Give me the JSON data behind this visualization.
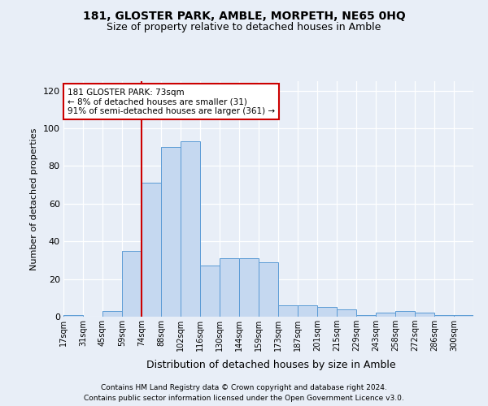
{
  "title1": "181, GLOSTER PARK, AMBLE, MORPETH, NE65 0HQ",
  "title2": "Size of property relative to detached houses in Amble",
  "xlabel": "Distribution of detached houses by size in Amble",
  "ylabel": "Number of detached properties",
  "bin_labels": [
    "17sqm",
    "31sqm",
    "45sqm",
    "59sqm",
    "74sqm",
    "88sqm",
    "102sqm",
    "116sqm",
    "130sqm",
    "144sqm",
    "159sqm",
    "173sqm",
    "187sqm",
    "201sqm",
    "215sqm",
    "229sqm",
    "243sqm",
    "258sqm",
    "272sqm",
    "286sqm",
    "300sqm"
  ],
  "bar_heights": [
    1,
    0,
    3,
    35,
    71,
    90,
    93,
    27,
    31,
    31,
    29,
    6,
    6,
    5,
    4,
    1,
    2,
    3,
    2,
    1,
    1
  ],
  "bar_color": "#c5d8f0",
  "bar_edge_color": "#5b9bd5",
  "ylim": [
    0,
    125
  ],
  "yticks": [
    0,
    20,
    40,
    60,
    80,
    100,
    120
  ],
  "vline_x_label": "74sqm",
  "vline_color": "#cc0000",
  "annotation_text": "181 GLOSTER PARK: 73sqm\n← 8% of detached houses are smaller (31)\n91% of semi-detached houses are larger (361) →",
  "annotation_box_color": "#ffffff",
  "annotation_box_edge": "#cc0000",
  "footer1": "Contains HM Land Registry data © Crown copyright and database right 2024.",
  "footer2": "Contains public sector information licensed under the Open Government Licence v3.0.",
  "bg_color": "#e8eef7",
  "plot_bg_color": "#e8eef7",
  "grid_color": "#ffffff",
  "title1_fontsize": 10,
  "title2_fontsize": 9
}
